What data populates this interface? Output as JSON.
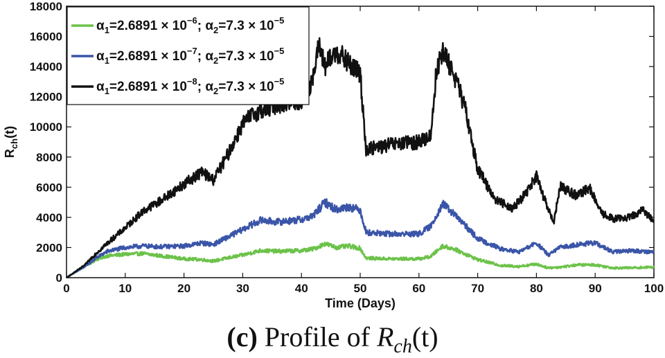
{
  "chart_data": {
    "type": "line",
    "title": "",
    "xlabel": "Time (Days)",
    "ylabel_main": "R",
    "ylabel_sub": "ch",
    "ylabel_tail": "(t)",
    "xlim": [
      0,
      100
    ],
    "ylim": [
      0,
      18000
    ],
    "xticks": [
      0,
      10,
      20,
      30,
      40,
      50,
      60,
      70,
      80,
      90,
      100
    ],
    "yticks": [
      0,
      2000,
      4000,
      6000,
      8000,
      10000,
      12000,
      14000,
      16000,
      18000
    ],
    "legend_position": "top-left",
    "series": [
      {
        "name": "α1=2.6891 × 10^-6; α2=7.3 × 10^-5",
        "legend": {
          "alpha": "α",
          "i1": "1",
          "eq1": "=2.6891 × 10",
          "exp1": "−6",
          "sep": "; ",
          "i2": "2",
          "eq2": "=7.3 × 10",
          "exp2": "−5"
        },
        "color": "#6cc24a",
        "x": [
          0,
          3,
          5,
          7,
          10,
          13,
          16,
          20,
          23,
          25,
          28,
          30,
          33,
          36,
          40,
          42,
          44,
          46,
          48,
          50,
          51,
          55,
          60,
          62,
          64,
          66,
          70,
          74,
          77,
          80,
          82,
          84,
          87,
          90,
          93,
          96,
          100
        ],
        "y": [
          0,
          700,
          1200,
          1450,
          1550,
          1600,
          1450,
          1250,
          1200,
          1100,
          1350,
          1500,
          1800,
          1750,
          1800,
          1900,
          2250,
          2000,
          2100,
          1950,
          1300,
          1250,
          1250,
          1400,
          2100,
          1900,
          1200,
          800,
          750,
          900,
          650,
          700,
          850,
          850,
          650,
          650,
          700
        ]
      },
      {
        "name": "α1=2.6891 × 10^-7; α2=7.3 × 10^-5",
        "legend": {
          "alpha": "α",
          "i1": "1",
          "eq1": "=2.6891 × 10",
          "exp1": "−7",
          "sep": "; ",
          "i2": "2",
          "eq2": "=7.3 × 10",
          "exp2": "−5"
        },
        "color": "#3a55a8",
        "x": [
          0,
          3,
          5,
          7,
          10,
          13,
          16,
          20,
          23,
          25,
          28,
          30,
          33,
          36,
          40,
          42,
          44,
          46,
          48,
          50,
          51,
          55,
          60,
          62,
          64,
          66,
          70,
          74,
          77,
          80,
          82,
          84,
          87,
          90,
          93,
          96,
          100
        ],
        "y": [
          0,
          700,
          1300,
          1750,
          2000,
          2100,
          2050,
          2100,
          2300,
          2200,
          2800,
          3200,
          3800,
          3700,
          3850,
          4100,
          5000,
          4500,
          4700,
          4500,
          3000,
          2900,
          2900,
          3400,
          4900,
          4200,
          2600,
          1900,
          1700,
          2300,
          1500,
          2000,
          2200,
          2300,
          1700,
          1800,
          1700
        ]
      },
      {
        "name": "α1=2.6891 × 10^-8; α2=7.3 × 10^-5",
        "legend": {
          "alpha": "α",
          "i1": "1",
          "eq1": "=2.6891 × 10",
          "exp1": "−8",
          "sep": "; ",
          "i2": "2",
          "eq2": "=7.3 × 10",
          "exp2": "−5"
        },
        "color": "#111111",
        "x": [
          0,
          3,
          5,
          7,
          10,
          13,
          16,
          20,
          23,
          25,
          27,
          30,
          32,
          36,
          40,
          42,
          43,
          44,
          46,
          48,
          50,
          51,
          55,
          60,
          62,
          63,
          64,
          66,
          68,
          70,
          73,
          76,
          78,
          80,
          82,
          83,
          84,
          87,
          89,
          91,
          93,
          96,
          98,
          100
        ],
        "y": [
          0,
          800,
          1600,
          2300,
          3300,
          4400,
          5100,
          6200,
          7000,
          6500,
          7800,
          10200,
          10900,
          11500,
          11700,
          13200,
          15500,
          14000,
          15000,
          14200,
          13500,
          8500,
          8800,
          9000,
          9400,
          13800,
          15000,
          13500,
          11000,
          7200,
          5200,
          4600,
          5500,
          6700,
          4500,
          3700,
          6100,
          5400,
          6000,
          4300,
          3900,
          4000,
          4500,
          3800
        ]
      }
    ]
  },
  "caption": {
    "label": "(c)",
    "text": " Profile of ",
    "math_main": "R",
    "math_sub": "ch",
    "math_tail": "(t)"
  }
}
